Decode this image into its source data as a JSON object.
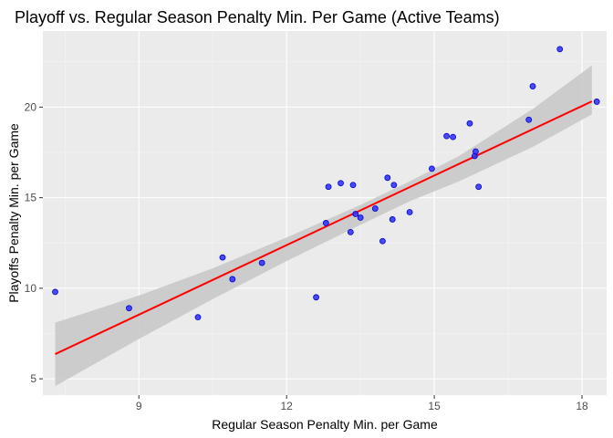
{
  "chart_data": {
    "type": "scatter",
    "title": "Playoff vs. Regular Season Penalty Min. Per Game (Active Teams)",
    "xlabel": "Regular Season Penalty Min. per Game",
    "ylabel": "Playoffs Penalty Min. per Game",
    "xlim": [
      7.05,
      18.5
    ],
    "ylim": [
      4.1,
      24.2
    ],
    "x_ticks": [
      9,
      12,
      15,
      18
    ],
    "y_ticks": [
      5,
      10,
      15,
      20
    ],
    "grid": true,
    "legend": "none",
    "colors": {
      "panel": "#ebebeb",
      "grid_major": "#ffffff",
      "grid_minor": "#f5f5f5",
      "point_fill": "#2b2bff",
      "point_stroke": "#0000cc",
      "fit_line": "#ff0000",
      "confidence_band": "#c9c9c9"
    },
    "series": [
      {
        "points": [
          [
            7.3,
            9.8
          ],
          [
            8.8,
            8.9
          ],
          [
            10.2,
            8.4
          ],
          [
            10.7,
            11.7
          ],
          [
            10.9,
            10.5
          ],
          [
            11.5,
            11.4
          ],
          [
            12.6,
            9.5
          ],
          [
            12.8,
            13.6
          ],
          [
            12.85,
            15.6
          ],
          [
            13.1,
            15.8
          ],
          [
            13.3,
            13.1
          ],
          [
            13.35,
            15.7
          ],
          [
            13.4,
            14.1
          ],
          [
            13.5,
            13.9
          ],
          [
            13.8,
            14.4
          ],
          [
            13.95,
            12.6
          ],
          [
            14.05,
            16.1
          ],
          [
            14.15,
            13.8
          ],
          [
            14.18,
            15.7
          ],
          [
            14.5,
            14.2
          ],
          [
            14.95,
            16.6
          ],
          [
            15.25,
            18.4
          ],
          [
            15.38,
            18.35
          ],
          [
            15.72,
            19.1
          ],
          [
            15.82,
            17.3
          ],
          [
            15.84,
            17.55
          ],
          [
            15.9,
            15.6
          ],
          [
            16.92,
            19.3
          ],
          [
            17.0,
            21.15
          ],
          [
            17.55,
            23.2
          ],
          [
            18.3,
            20.3
          ]
        ]
      }
    ],
    "fit": {
      "method": "lm",
      "x_range": [
        7.3,
        18.2
      ],
      "intercept": -2.98,
      "slope": 1.28,
      "band": {
        "x": [
          7.3,
          9.0,
          10.5,
          12.0,
          13.5,
          14.5,
          15.5,
          17.0,
          18.2
        ],
        "lower": [
          4.6,
          7.2,
          9.4,
          11.5,
          13.5,
          14.8,
          15.9,
          17.8,
          19.6
        ],
        "upper": [
          8.1,
          9.6,
          11.1,
          12.8,
          14.6,
          15.9,
          17.3,
          19.9,
          22.3
        ]
      }
    }
  }
}
